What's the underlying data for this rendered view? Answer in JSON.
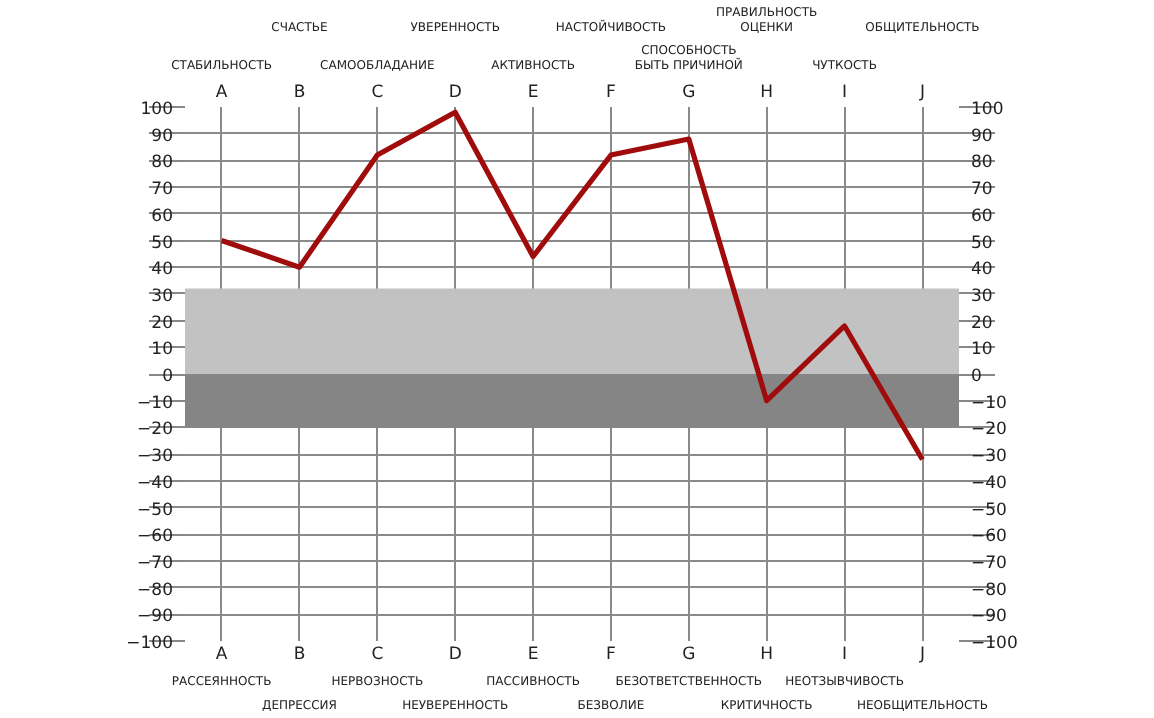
{
  "chart_data": {
    "type": "line",
    "categories": [
      "A",
      "B",
      "C",
      "D",
      "E",
      "F",
      "G",
      "H",
      "I",
      "J"
    ],
    "series": [
      {
        "color": "#a00c0c",
        "values": [
          50,
          40,
          82,
          98,
          44,
          82,
          88,
          -10,
          18,
          -32
        ]
      }
    ],
    "ylim": [
      -100,
      100
    ],
    "yticks": [
      -100,
      -90,
      -80,
      -70,
      -60,
      -50,
      -40,
      -30,
      -20,
      -10,
      0,
      10,
      20,
      30,
      40,
      50,
      60,
      70,
      80,
      90,
      100
    ],
    "y2lim": [
      -100,
      100
    ],
    "y2ticks": [
      -100,
      -90,
      -80,
      -70,
      -60,
      -50,
      -40,
      -30,
      -20,
      -10,
      0,
      10,
      20,
      30,
      40,
      50,
      60,
      70,
      80,
      90,
      100
    ],
    "grid": true,
    "line_style": "solid",
    "bands": [
      {
        "axis": "y",
        "from": 0,
        "to": 32,
        "color": "#c2c2c2"
      },
      {
        "axis": "y",
        "from": -20,
        "to": 0,
        "color": "#858585"
      }
    ],
    "annotations": [
      "СТАБИЛЬНОСТЬ",
      "СЧАСТЬЕ",
      "САМООБЛАДАНИЕ",
      "УВЕРЕННОСТЬ",
      "АКТИВНОСТЬ",
      "НАСТОЙЧИВОСТЬ",
      "СПОСОБНОСТЬ\nБЫТЬ ПРИЧИНОЙ",
      "ПРАВИЛЬНОСТЬ\nОЦЕНКИ",
      "ЧУТКОСТЬ",
      "ОБЩИТЕЛЬНОСТЬ",
      "РАССЕЯННОСТЬ",
      "ДЕПРЕССИЯ",
      "НЕРВОЗНОСТЬ",
      "НЕУВЕРЕННОСТЬ",
      "ПАССИВНОСТЬ",
      "БЕЗВОЛИЕ",
      "БЕЗОТВЕТСТВЕННОСТЬ",
      "КРИТИЧНОСТЬ",
      "НЕОТЗЫВЧИВОСТЬ",
      "НЕОБЩИТЕЛЬНОСТЬ"
    ]
  }
}
